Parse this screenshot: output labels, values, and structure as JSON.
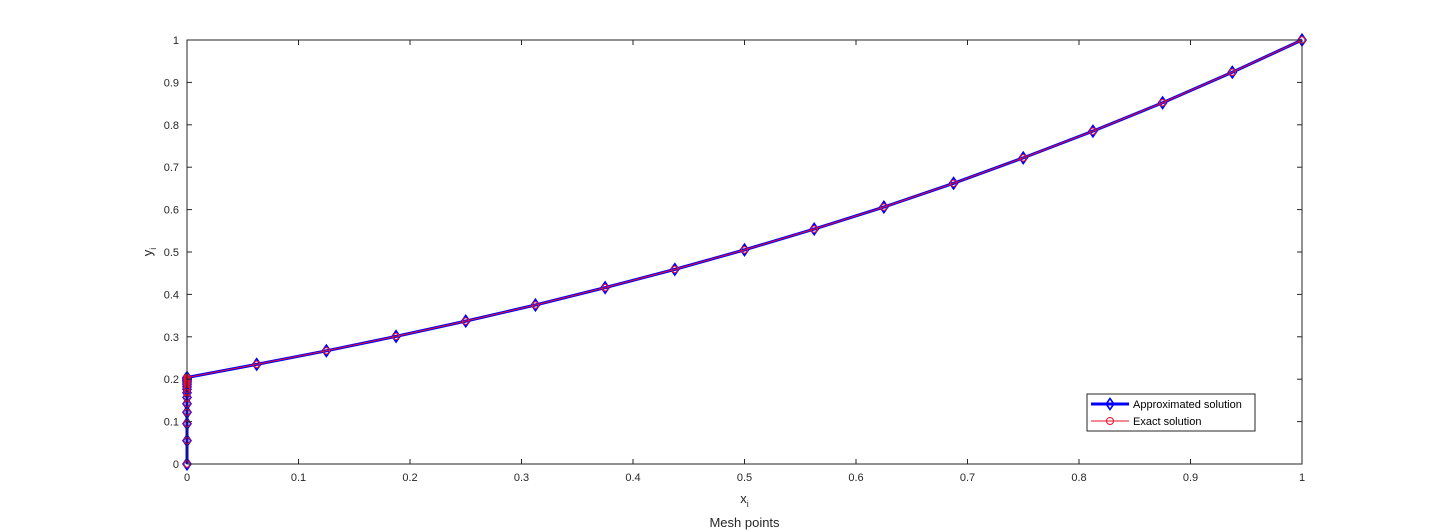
{
  "chart_data": {
    "type": "line",
    "title": "",
    "xlabel": "x",
    "xlabel_sub": "i",
    "xlabel_caption": "Mesh points",
    "ylabel": "y",
    "ylabel_sub": "i",
    "xlim": [
      0,
      1
    ],
    "ylim": [
      0,
      1
    ],
    "xticks": [
      0,
      0.1,
      0.2,
      0.3,
      0.4,
      0.5,
      0.6,
      0.7,
      0.8,
      0.9,
      1
    ],
    "xtick_labels": [
      "0",
      "0.1",
      "0.2",
      "0.3",
      "0.4",
      "0.5",
      "0.6",
      "0.7",
      "0.8",
      "0.9",
      "1"
    ],
    "yticks": [
      0,
      0.1,
      0.2,
      0.3,
      0.4,
      0.5,
      0.6,
      0.7,
      0.8,
      0.9,
      1
    ],
    "ytick_labels": [
      "0",
      "0.1",
      "0.2",
      "0.3",
      "0.4",
      "0.5",
      "0.6",
      "0.7",
      "0.8",
      "0.9",
      "1"
    ],
    "grid": false,
    "legend_position": "bottom-right",
    "series": [
      {
        "name": "Approximated solution",
        "color": "#0000ff",
        "marker": "diamond",
        "x": [
          0,
          0,
          0,
          0,
          0,
          0,
          0,
          0,
          0,
          0,
          0,
          0,
          0,
          0,
          0,
          0,
          0,
          0.0625,
          0.125,
          0.1875,
          0.25,
          0.3125,
          0.375,
          0.4375,
          0.5,
          0.5625,
          0.625,
          0.6875,
          0.75,
          0.8125,
          0.875,
          0.9375,
          1
        ],
        "y": [
          0,
          0.055,
          0.095,
          0.122,
          0.142,
          0.157,
          0.168,
          0.176,
          0.182,
          0.187,
          0.191,
          0.194,
          0.197,
          0.199,
          0.201,
          0.202,
          0.204,
          0.235,
          0.267,
          0.301,
          0.337,
          0.375,
          0.416,
          0.459,
          0.505,
          0.554,
          0.606,
          0.662,
          0.722,
          0.785,
          0.852,
          0.924,
          1
        ]
      },
      {
        "name": "Exact solution",
        "color": "#e8102a",
        "marker": "circle",
        "x": [
          0,
          0,
          0,
          0,
          0,
          0,
          0,
          0,
          0,
          0,
          0,
          0,
          0,
          0,
          0,
          0,
          0,
          0.0625,
          0.125,
          0.1875,
          0.25,
          0.3125,
          0.375,
          0.4375,
          0.5,
          0.5625,
          0.625,
          0.6875,
          0.75,
          0.8125,
          0.875,
          0.9375,
          1
        ],
        "y": [
          0,
          0.055,
          0.095,
          0.122,
          0.142,
          0.157,
          0.168,
          0.176,
          0.182,
          0.187,
          0.191,
          0.194,
          0.197,
          0.199,
          0.201,
          0.202,
          0.204,
          0.235,
          0.267,
          0.301,
          0.337,
          0.375,
          0.416,
          0.459,
          0.505,
          0.554,
          0.606,
          0.662,
          0.722,
          0.785,
          0.852,
          0.924,
          1
        ]
      }
    ]
  }
}
